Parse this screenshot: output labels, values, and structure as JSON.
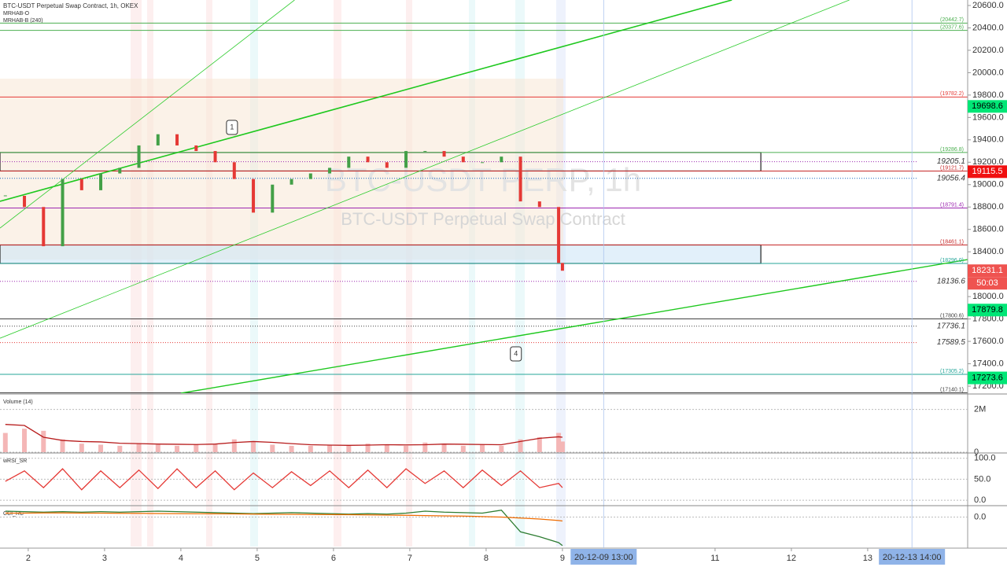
{
  "title": "BTC-USDT Perpetual Swap Contract, 1h, OKEX",
  "indicators": [
    "MRHAB-O",
    "MRHAB-B (240)"
  ],
  "watermark": {
    "symbol": "BTC-USDT PERP, 1h",
    "description": "BTC-USDT Perpetual Swap Contract"
  },
  "time_badges": [
    {
      "text": "20-12-09  13:00",
      "day": 9.54
    },
    {
      "text": "20-12-13  14:00",
      "day": 13.58
    }
  ],
  "chart_data": [
    {
      "type": "candlestick",
      "up_color": "#43a047",
      "down_color": "#e53935",
      "xlim": [
        1.63,
        14.31
      ],
      "xticks": [
        2,
        3,
        4,
        5,
        6,
        7,
        8,
        9,
        11,
        12,
        13
      ],
      "ylim": [
        17137,
        20649
      ],
      "yticks": [
        {
          "value": 17200,
          "label": "17200.0"
        },
        {
          "value": 17400,
          "label": "17400.0"
        },
        {
          "value": 17600,
          "label": "17600.0"
        },
        {
          "value": 17800,
          "label": "17800.0"
        },
        {
          "value": 18000,
          "label": "18000.0"
        },
        {
          "value": 18200,
          "label": "18200.0"
        },
        {
          "value": 18400,
          "label": "18400.0"
        },
        {
          "value": 18600,
          "label": "18600.0"
        },
        {
          "value": 18800,
          "label": "18800.0"
        },
        {
          "value": 19000,
          "label": "19000.0"
        },
        {
          "value": 19200,
          "label": "19200.0"
        },
        {
          "value": 19400,
          "label": "19400.0"
        },
        {
          "value": 19600,
          "label": "19600.0"
        },
        {
          "value": 19800,
          "label": "19800.0"
        },
        {
          "value": 20000,
          "label": "20000.0"
        },
        {
          "value": 20200,
          "label": "20200.0"
        },
        {
          "value": 20400,
          "label": "20400.0"
        },
        {
          "value": 20600,
          "label": "20600.0"
        }
      ],
      "x": [
        1.7,
        1.95,
        2.2,
        2.45,
        2.7,
        2.95,
        3.2,
        3.45,
        3.7,
        3.95,
        4.2,
        4.45,
        4.7,
        4.95,
        5.2,
        5.45,
        5.7,
        5.95,
        6.2,
        6.45,
        6.7,
        6.95,
        7.2,
        7.45,
        7.7,
        7.95,
        8.2,
        8.45,
        8.7,
        8.95,
        9.0
      ],
      "close": [
        18900,
        18800,
        18450,
        19050,
        18950,
        19100,
        19150,
        19350,
        19450,
        19350,
        19300,
        19200,
        19050,
        18750,
        19000,
        19050,
        19100,
        19150,
        19250,
        19200,
        19150,
        19300,
        19300,
        19250,
        19200,
        19200,
        19250,
        18850,
        18800,
        18300,
        18231.1
      ],
      "levels": [
        {
          "value": 20442.7,
          "label": "(20442.7)",
          "color": "#4caf50"
        },
        {
          "value": 20377.6,
          "label": "(20377.6)",
          "color": "#4caf50"
        },
        {
          "value": 19782.2,
          "label": "(19782.2)",
          "color": "#e53935"
        },
        {
          "value": 19286.8,
          "label": "(19286.8)",
          "color": "#4caf50"
        },
        {
          "value": 19121.7,
          "label": "(19121.7)",
          "color": "#c62828"
        },
        {
          "value": 18791.4,
          "label": "(18791.4)",
          "color": "#9c27b0"
        },
        {
          "value": 18461.1,
          "label": "(18461.1)",
          "color": "#c62828"
        },
        {
          "value": 18296.0,
          "label": "(18296.0)",
          "color": "#26a69a"
        },
        {
          "value": 17800.6,
          "label": "(17800.6)",
          "color": "#424242"
        },
        {
          "value": 17305.2,
          "label": "(17305.2)",
          "color": "#26a69a"
        },
        {
          "value": 17140.1,
          "label": "(17140.1)",
          "color": "#424242"
        }
      ],
      "dotted_levels": [
        {
          "value": 19205.1,
          "label": "19205.1",
          "color": "#9c27b0"
        },
        {
          "value": 19056.4,
          "label": "19056.4",
          "color": "#1565c0"
        },
        {
          "value": 18136.6,
          "label": "18136.6",
          "color": "#9c27b0"
        },
        {
          "value": 17736.1,
          "label": "17736.1",
          "color": "#424242"
        },
        {
          "value": 17589.5,
          "label": "17589.5",
          "color": "#e53935"
        }
      ],
      "zones": [
        [
          19286.8,
          19121.7,
          11.6
        ],
        [
          18461.1,
          18296.0,
          11.6
        ]
      ],
      "price_badges": [
        {
          "value": 19698.6,
          "color": "#00e676",
          "text_color": "#000"
        },
        {
          "value": 19115.5,
          "color": "#f01010",
          "text_color": "#fff"
        },
        {
          "value": 18231.1,
          "color": "#ef5350",
          "text_color": "#fff",
          "countdown": "50:03"
        },
        {
          "value": 17879.8,
          "color": "#00e676",
          "text_color": "#000"
        },
        {
          "value": 17273.6,
          "color": "#00e676",
          "text_color": "#000"
        }
      ],
      "trendlines": [
        {
          "from": [
            1.63,
            18851
          ],
          "to": [
            11.22,
            20649
          ],
          "color": "#1ec81e",
          "width": 1.6
        },
        {
          "from": [
            1.63,
            17628
          ],
          "to": [
            12.76,
            20649
          ],
          "color": "#2ecc2e",
          "width": 0.8
        },
        {
          "from": [
            1.63,
            18612
          ],
          "to": [
            5.49,
            20649
          ],
          "color": "#2ecc2e",
          "width": 0.8
        },
        {
          "from": [
            4.0,
            17137
          ],
          "to": [
            14.31,
            18331
          ],
          "color": "#1ec81e",
          "width": 1.4
        }
      ],
      "annotations": [
        {
          "text": "1",
          "x": 4.67,
          "y": 19511
        },
        {
          "text": "4",
          "x": 8.39,
          "y": 17488
        }
      ]
    },
    {
      "type": "bar",
      "title": "Volume (14)",
      "color": "#f4b6b6",
      "ma_color": "#b71c1c",
      "ylim": [
        0,
        2650000
      ],
      "yticks": [
        {
          "value": 2000000,
          "label": "2M"
        },
        0
      ],
      "x": [
        1.7,
        1.95,
        2.2,
        2.45,
        2.7,
        2.95,
        3.2,
        3.45,
        3.7,
        3.95,
        4.2,
        4.45,
        4.7,
        4.95,
        5.2,
        5.45,
        5.7,
        5.95,
        6.2,
        6.45,
        6.7,
        6.95,
        7.2,
        7.45,
        7.7,
        7.95,
        8.2,
        8.45,
        8.7,
        8.95,
        9.0
      ],
      "values": [
        900000,
        1100000,
        1000000,
        600000,
        400000,
        350000,
        300000,
        400000,
        350000,
        300000,
        350000,
        400000,
        600000,
        500000,
        350000,
        300000,
        300000,
        350000,
        300000,
        400000,
        350000,
        300000,
        450000,
        400000,
        300000,
        350000,
        300000,
        600000,
        700000,
        900000,
        500000
      ],
      "ma": [
        1300000,
        1250000,
        700000,
        550000,
        500000,
        480000,
        420000,
        400000,
        380000,
        370000,
        360000,
        380000,
        450000,
        500000,
        460000,
        400000,
        350000,
        330000,
        320000,
        330000,
        350000,
        340000,
        350000,
        380000,
        370000,
        360000,
        350000,
        500000,
        650000,
        720000,
        700000
      ]
    },
    {
      "type": "line",
      "title": "wRSI_SR",
      "color": "#e53935",
      "ylim": [
        -13,
        109
      ],
      "yticks": [
        {
          "value": 100,
          "label": "100.0"
        },
        {
          "value": 50,
          "label": "50.0"
        },
        {
          "value": 0,
          "label": "0.0"
        }
      ],
      "x": [
        1.7,
        1.95,
        2.2,
        2.45,
        2.7,
        2.95,
        3.2,
        3.45,
        3.7,
        3.95,
        4.2,
        4.45,
        4.7,
        4.95,
        5.2,
        5.45,
        5.7,
        5.95,
        6.2,
        6.45,
        6.7,
        6.95,
        7.2,
        7.45,
        7.7,
        7.95,
        8.2,
        8.45,
        8.7,
        8.95,
        9.0
      ],
      "values": [
        45,
        70,
        30,
        75,
        25,
        70,
        30,
        72,
        28,
        75,
        30,
        70,
        25,
        65,
        30,
        68,
        35,
        70,
        30,
        72,
        30,
        75,
        40,
        70,
        30,
        72,
        35,
        70,
        30,
        40,
        30
      ]
    },
    {
      "type": "line",
      "title": "CCI_RC",
      "color": "#2e7d32",
      "signal_color": "#ef6c00",
      "ylim": [
        -300,
        100
      ],
      "yticks": [
        {
          "value": 0,
          "label": "0.0"
        }
      ],
      "x": [
        1.7,
        1.95,
        2.2,
        2.45,
        2.7,
        2.95,
        3.2,
        3.45,
        3.7,
        3.95,
        4.2,
        4.45,
        4.7,
        4.95,
        5.2,
        5.45,
        5.7,
        5.95,
        6.2,
        6.45,
        6.7,
        6.95,
        7.2,
        7.45,
        7.7,
        7.95,
        8.2,
        8.45,
        8.7,
        8.95,
        9.0
      ],
      "values": [
        60,
        55,
        50,
        55,
        50,
        55,
        50,
        55,
        60,
        55,
        50,
        45,
        40,
        35,
        40,
        45,
        40,
        35,
        30,
        35,
        30,
        40,
        60,
        50,
        45,
        40,
        70,
        -150,
        -200,
        -260,
        -290
      ],
      "signal": [
        40,
        40,
        42,
        42,
        40,
        40,
        38,
        38,
        36,
        35,
        34,
        33,
        32,
        30,
        28,
        28,
        26,
        25,
        24,
        22,
        20,
        18,
        15,
        12,
        10,
        5,
        0,
        -10,
        -20,
        -35,
        -40
      ]
    }
  ]
}
